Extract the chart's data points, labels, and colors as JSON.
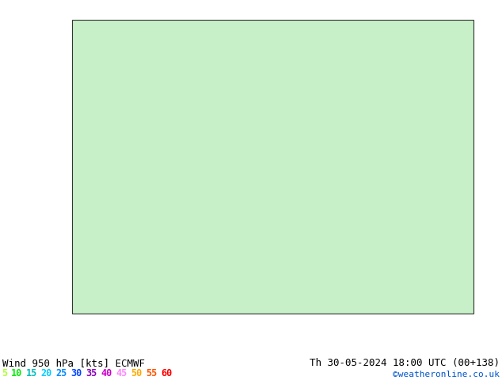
{
  "title_left": "Wind 950 hPa [kts] ECMWF",
  "title_right": "Th 30-05-2024 18:00 UTC (00+138)",
  "credit": "©weatheronline.co.uk",
  "legend_values": [
    5,
    10,
    15,
    20,
    25,
    30,
    35,
    40,
    45,
    50,
    55,
    60
  ],
  "legend_colors": [
    "#adff2f",
    "#00ee00",
    "#00bbbb",
    "#00ccff",
    "#0088ff",
    "#0044ff",
    "#8800bb",
    "#cc00cc",
    "#ff88ff",
    "#ffaa00",
    "#ff5500",
    "#ff0000"
  ],
  "sea_color": "#d8d8d8",
  "land_color": "#c8f0c8",
  "water_color": "#d8d8d8",
  "fig_width": 6.34,
  "fig_height": 4.9,
  "dpi": 100,
  "extent": [
    0.0,
    35.0,
    54.0,
    72.0
  ],
  "speed_color_levels": [
    5,
    10,
    15,
    20,
    25,
    30,
    35,
    40,
    45,
    50,
    55,
    60
  ],
  "speed_colors": {
    "5": "#adff2f",
    "10": "#00ee00",
    "15": "#00bbbb",
    "20": "#00ccff",
    "25": "#0088ff",
    "30": "#0044ff",
    "35": "#8800bb",
    "40": "#cc00cc",
    "45": "#ff88ff",
    "50": "#ffaa00",
    "55": "#ff5500",
    "60": "#ff0000"
  }
}
